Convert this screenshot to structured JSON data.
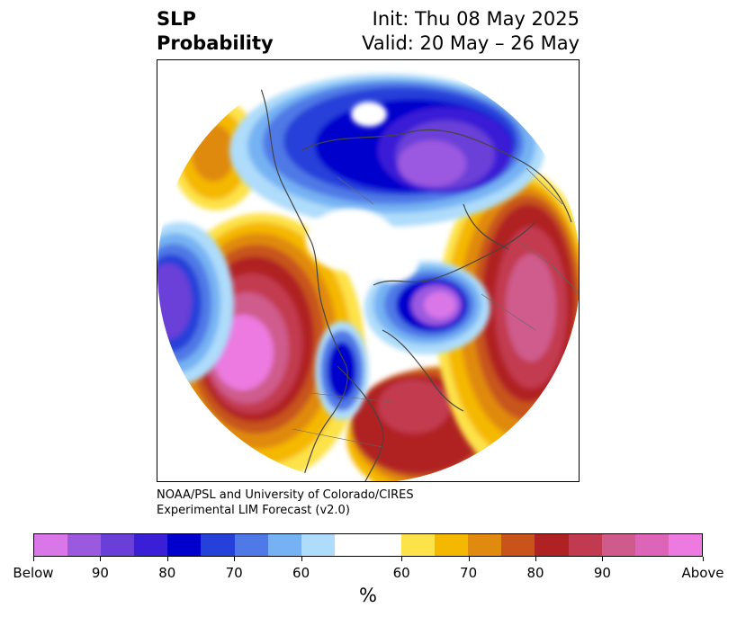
{
  "title": {
    "left_line1": "SLP",
    "left_line2": "Probability",
    "right_line1": "Init: Thu 08 May 2025",
    "right_line2": "Valid: 20 May – 26 May"
  },
  "credit": {
    "line1": "NOAA/PSL and University of Colorado/CIRES",
    "line2": "Experimental LIM Forecast (v2.0)"
  },
  "colorbar": {
    "below_colors": [
      "#d977e8",
      "#9b59e0",
      "#6a3fd8",
      "#3a1fd6",
      "#0000cd",
      "#2541d9",
      "#4f79e6",
      "#76b2f3",
      "#aedcfa"
    ],
    "neutral_color": "#ffffff",
    "above_colors": [
      "#fde24a",
      "#f5b800",
      "#e08a10",
      "#c8541a",
      "#b02124",
      "#c23a50",
      "#cf5b8c",
      "#dd65b8",
      "#ec7ae0"
    ],
    "tick_labels": [
      "Below",
      "90",
      "80",
      "70",
      "60",
      "60",
      "70",
      "80",
      "90",
      "Above"
    ],
    "unit_label": "%"
  }
}
